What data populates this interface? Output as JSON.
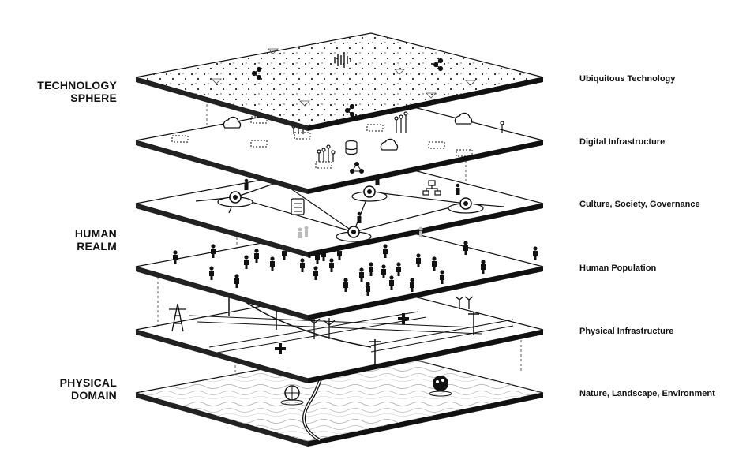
{
  "groups": [
    {
      "line1": "TECHNOLOGY",
      "line2": "SPHERE"
    },
    {
      "line1": "HUMAN",
      "line2": "REALM"
    },
    {
      "line1": "PHYSICAL",
      "line2": "DOMAIN"
    }
  ],
  "layers": [
    "Ubiquitous Technology",
    "Digital Infrastructure",
    "Culture, Society, Governance",
    "Human Population",
    "Physical Infrastructure",
    "Nature, Landscape, Environment"
  ],
  "colors": {
    "ink": "#111111",
    "plate": "#ffffff",
    "grey": "#999999"
  }
}
